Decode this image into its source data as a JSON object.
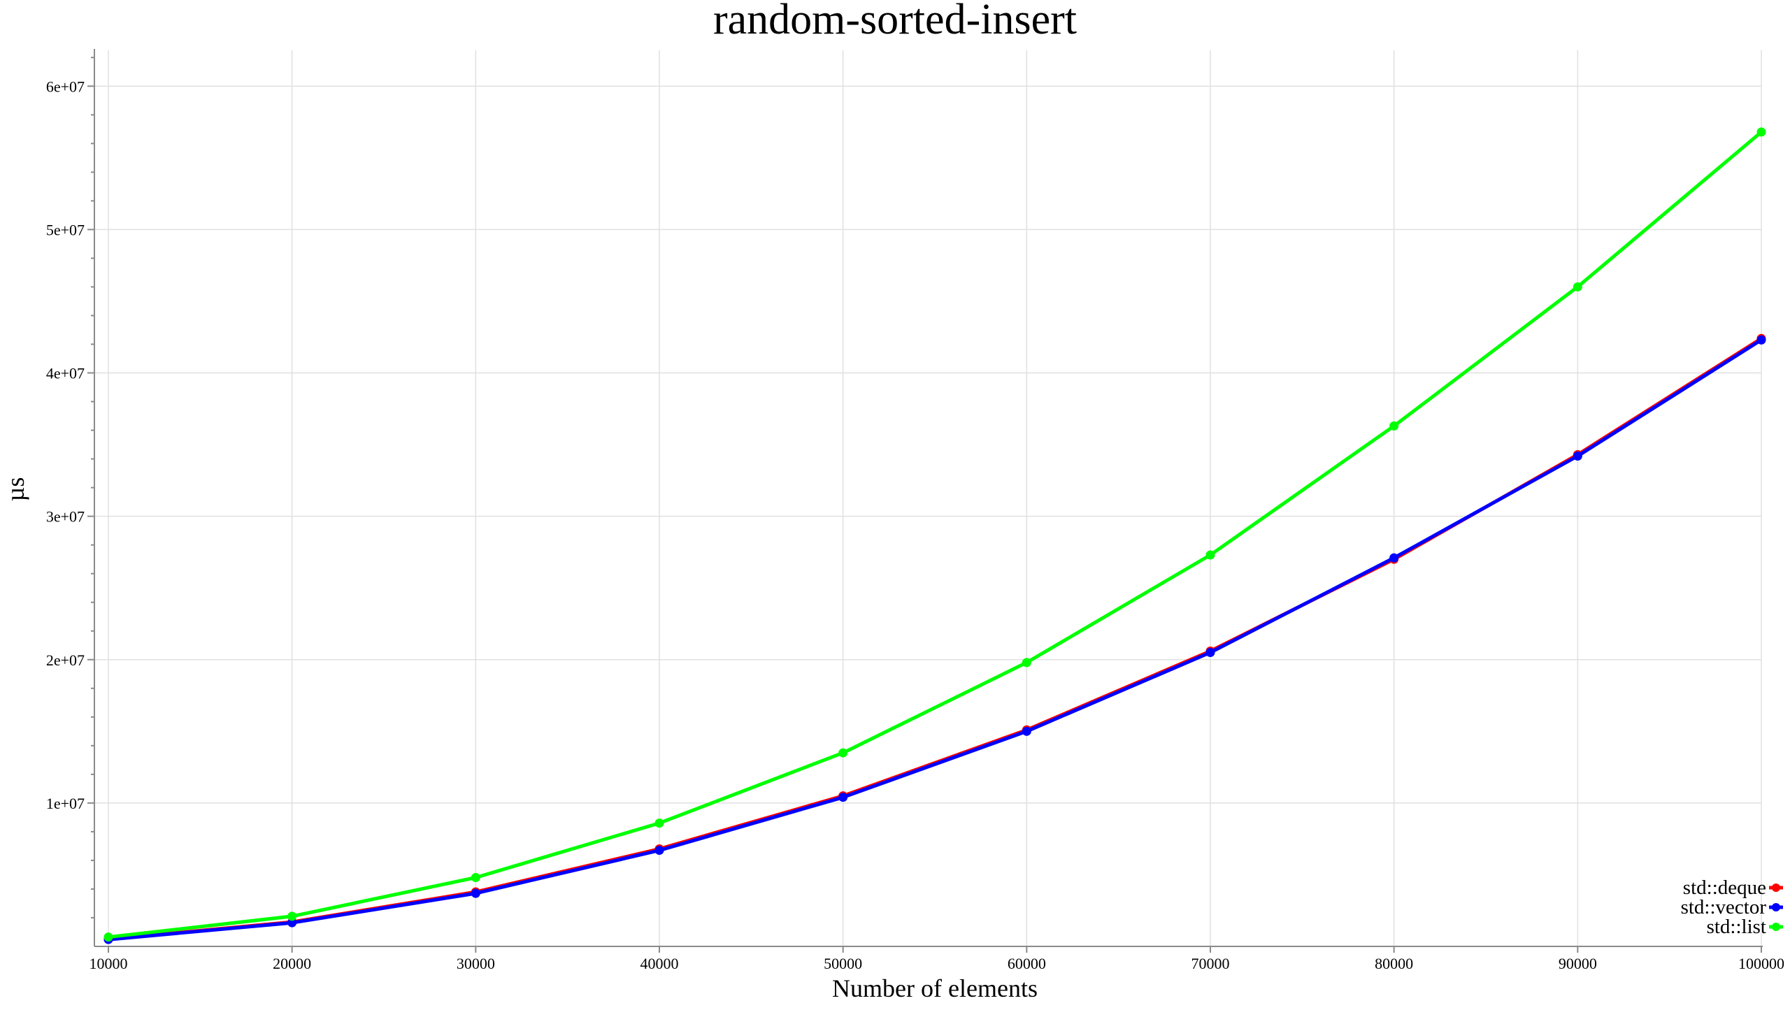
{
  "chart_data": {
    "type": "line",
    "title": "random-sorted-insert",
    "xlabel": "Number of elements",
    "ylabel": "µs",
    "x": [
      10000,
      20000,
      30000,
      40000,
      50000,
      60000,
      70000,
      80000,
      90000,
      100000
    ],
    "x_tick_labels": [
      "10000",
      "20000",
      "30000",
      "40000",
      "50000",
      "60000",
      "70000",
      "80000",
      "90000",
      "100000"
    ],
    "y_ticks": [
      10000000,
      20000000,
      30000000,
      40000000,
      50000000,
      60000000
    ],
    "y_tick_labels": [
      "1e+07",
      "2e+07",
      "3e+07",
      "4e+07",
      "5e+07",
      "6e+07"
    ],
    "xlim": [
      10000,
      100000
    ],
    "ylim": [
      0,
      62500000
    ],
    "grid": true,
    "legend_position": "bottom-right",
    "series": [
      {
        "name": "std::deque",
        "color": "#ff0000",
        "values": [
          500000,
          1700000,
          3800000,
          6800000,
          10500000,
          15100000,
          20600000,
          27000000,
          34300000,
          42400000
        ]
      },
      {
        "name": "std::vector",
        "color": "#0000ff",
        "values": [
          480000,
          1650000,
          3700000,
          6700000,
          10400000,
          15000000,
          20500000,
          27100000,
          34200000,
          42300000
        ]
      },
      {
        "name": "std::list",
        "color": "#00ff00",
        "values": [
          650000,
          2100000,
          4800000,
          8600000,
          13500000,
          19800000,
          27300000,
          36300000,
          46000000,
          56800000
        ]
      }
    ]
  }
}
